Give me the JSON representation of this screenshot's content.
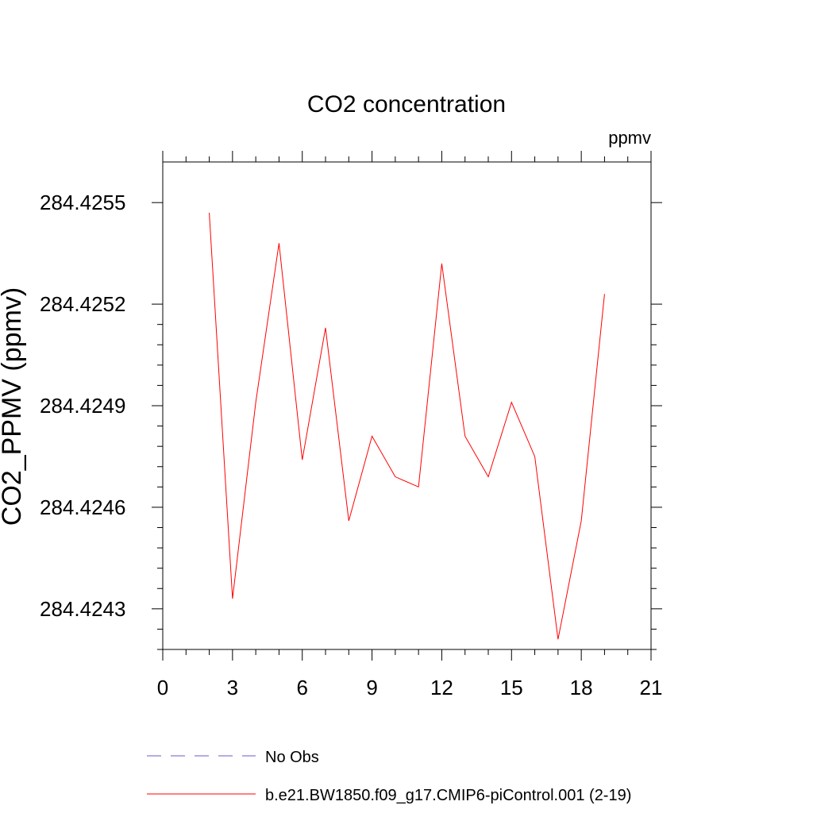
{
  "chart_data": {
    "type": "line",
    "title": "CO2 concentration",
    "units_label": "ppmv",
    "xlabel": "",
    "ylabel": "CO2_PPMV  (ppmv)",
    "xlim": [
      0,
      21
    ],
    "ylim": [
      284.42418,
      284.42562
    ],
    "x_ticks": [
      0,
      3,
      6,
      9,
      12,
      15,
      18,
      21
    ],
    "x_tick_labels": [
      "0",
      "3",
      "6",
      "9",
      "12",
      "15",
      "18",
      "21"
    ],
    "y_ticks": [
      284.4243,
      284.4246,
      284.4249,
      284.4252,
      284.4255
    ],
    "y_tick_labels": [
      "284.4243",
      "284.4246",
      "284.4249",
      "284.4252",
      "284.4255"
    ],
    "grid": false,
    "series": [
      {
        "name": "b.e21.BW1850.f09_g17.CMIP6-piControl.001 (2-19)",
        "color": "#ff0000",
        "style": "solid",
        "x": [
          2,
          3,
          4,
          5,
          6,
          7,
          8,
          9,
          10,
          11,
          12,
          13,
          14,
          15,
          16,
          17,
          18,
          19
        ],
        "values": [
          284.42547,
          284.42433,
          284.42491,
          284.42538,
          284.42474,
          284.42513,
          284.42456,
          284.42481,
          284.42469,
          284.42466,
          284.42532,
          284.42481,
          284.42469,
          284.42491,
          284.42475,
          284.42421,
          284.42456,
          284.42523
        ]
      }
    ],
    "legend": [
      {
        "label": "No Obs",
        "color": "#6a5acd",
        "style": "dashed"
      },
      {
        "label": "b.e21.BW1850.f09_g17.CMIP6-piControl.001 (2-19)",
        "color": "#ff0000",
        "style": "solid"
      }
    ],
    "legend_position": "bottom"
  }
}
